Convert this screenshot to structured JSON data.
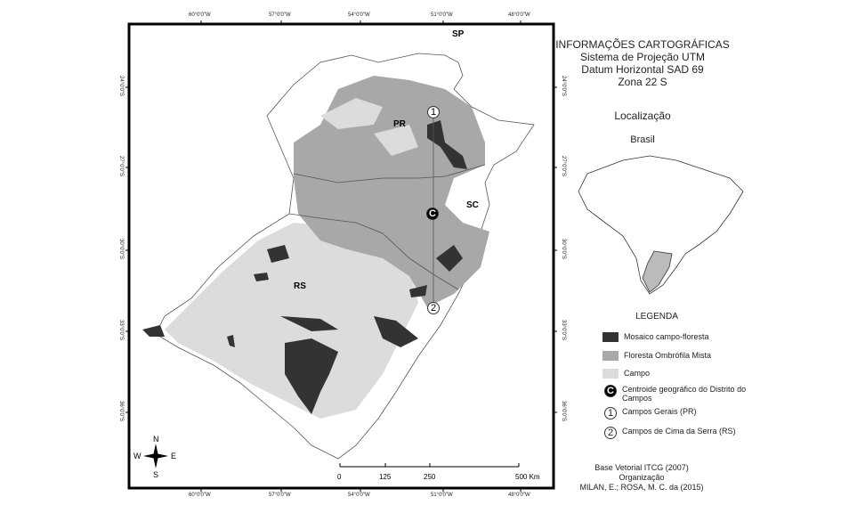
{
  "map": {
    "top_ticks": [
      "60°0'0\"W",
      "57°0'0\"W",
      "54°0'0\"W",
      "51°0'0\"W",
      "48°0'0\"W"
    ],
    "bottom_ticks": [
      "60°0'0\"W",
      "57°0'0\"W",
      "54°0'0\"W",
      "51°0'0\"W",
      "48°0'0\"W"
    ],
    "left_ticks": [
      "24°0'0\"S",
      "27°0'0\"S",
      "30°0'0\"S",
      "33°0'0\"S",
      "36°0'0\"S"
    ],
    "right_ticks": [
      "24°0'0\"S",
      "27°0'0\"S",
      "30°0'0\"S",
      "33°0'0\"S",
      "36°0'0\"S"
    ],
    "state_labels": {
      "sp": "SP",
      "pr": "PR",
      "sc": "SC",
      "rs": "RS"
    },
    "markers": {
      "c": "C",
      "one": "1",
      "two": "2"
    },
    "scale": {
      "labels": [
        "0",
        "125",
        "250",
        "500 Km"
      ]
    },
    "compass": {
      "n": "N",
      "s": "S",
      "e": "E",
      "w": "W"
    }
  },
  "info": {
    "title": "INFORMAÇÕES CARTOGRÁFICAS",
    "projection": "Sistema de Projeção UTM",
    "datum": "Datum Horizontal SAD 69",
    "zone": "Zona 22 S",
    "location_title": "Localização",
    "country": "Brasil"
  },
  "legend": {
    "title": "LEGENDA",
    "items": [
      {
        "label": "Mosaico campo-floresta",
        "color": "#333333"
      },
      {
        "label": "Floresta Ombrófila Mista",
        "color": "#a8a8a8"
      },
      {
        "label": "Campo",
        "color": "#dcdcdc"
      },
      {
        "symbol": "C",
        "label": "Centroide geográfico do Distrito do Campos"
      },
      {
        "symbol": "1",
        "label": "Campos Gerais (PR)"
      },
      {
        "symbol": "2",
        "label": "Campos de Cima da Serra (RS)"
      }
    ]
  },
  "credits": {
    "line1": "Base Vetorial ITCG (2007)",
    "line2": "Organização",
    "line3": "MILAN, E.; ROSA, M. C. da (2015)"
  }
}
